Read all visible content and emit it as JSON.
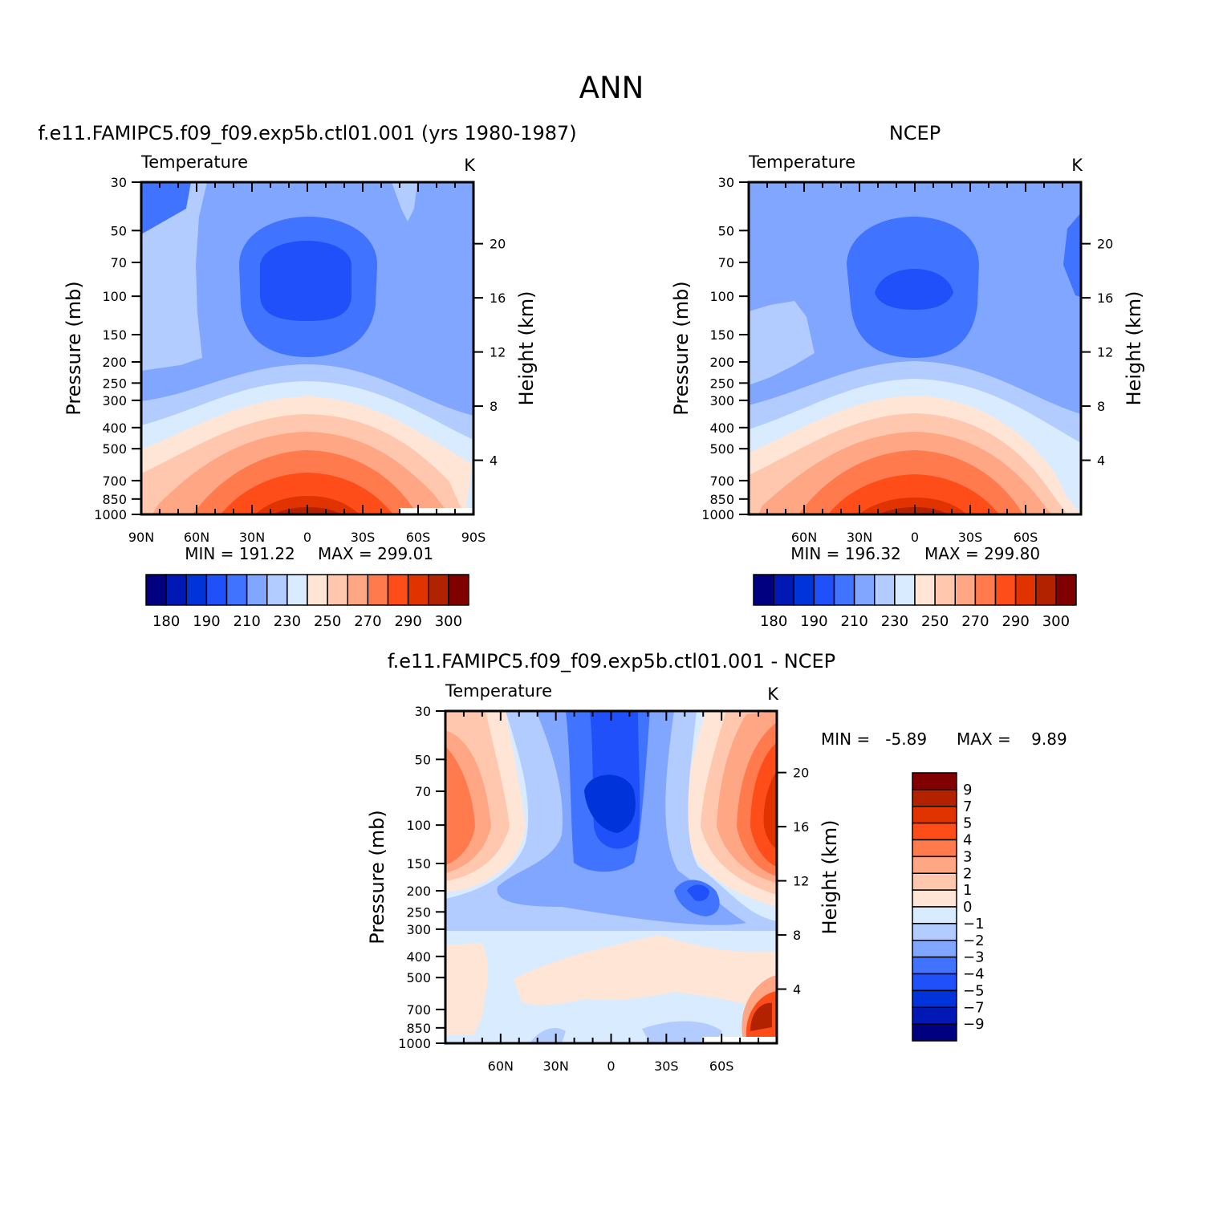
{
  "page_title": "ANN",
  "colors": {
    "temp_scale": [
      "#000080",
      "#0019B5",
      "#0033D9",
      "#1F50FA",
      "#4073FF",
      "#80A6FF",
      "#B3CCFF",
      "#D9EBFF",
      "#FFE5D6",
      "#FFC7AD",
      "#FFA685",
      "#FF7A4D",
      "#FF4D1A",
      "#E03300",
      "#B32200",
      "#800000"
    ],
    "diff_scale": [
      "#000080",
      "#0019B5",
      "#0033D9",
      "#1F50FA",
      "#4073FF",
      "#80A6FF",
      "#B3CCFF",
      "#D9EBFF",
      "#FFE5D6",
      "#FFC7AD",
      "#FFA685",
      "#FF7A4D",
      "#FF4D1A",
      "#E03300",
      "#B32200",
      "#800000"
    ]
  },
  "chart_data": [
    {
      "id": "model",
      "type": "contour",
      "title": "f.e11.FAMIPC5.f09_f09.exp5b.ctl01.001 (yrs 1980-1987)",
      "left_string": "Temperature",
      "right_string": "K",
      "xlabel": "",
      "ylabel": "Pressure (mb)",
      "y2label": "Height (km)",
      "xlim": [
        90,
        -90
      ],
      "ylim": [
        1000,
        30
      ],
      "x_ticks": [
        90,
        60,
        30,
        0,
        -30,
        -60,
        -90
      ],
      "x_tick_labels": [
        "90N",
        "60N",
        "30N",
        "0",
        "30S",
        "60S",
        "90S"
      ],
      "y_ticks": [
        30,
        50,
        70,
        100,
        150,
        200,
        250,
        300,
        400,
        500,
        700,
        850,
        1000
      ],
      "y_tick_labels": [
        "30",
        "50",
        "70",
        "100",
        "150",
        "200",
        "250",
        "300",
        "400",
        "500",
        "700",
        "850",
        "1000"
      ],
      "height_ticks_km": [
        4,
        8,
        12,
        16,
        20
      ],
      "height_tick_labels": [
        "4",
        "8",
        "12",
        "16",
        "20"
      ],
      "min_label": "MIN = 191.22",
      "max_label": "MAX = 299.01",
      "min": 191.22,
      "max": 299.01,
      "levels": [
        180,
        185,
        190,
        200,
        210,
        220,
        230,
        240,
        250,
        260,
        270,
        280,
        290,
        295,
        300
      ],
      "colorbar_labels": [
        "180",
        "190",
        "210",
        "230",
        "250",
        "270",
        "290",
        "300"
      ]
    },
    {
      "id": "obs",
      "type": "contour",
      "title": "NCEP",
      "left_string": "Temperature",
      "right_string": "K",
      "ylabel": "Pressure (mb)",
      "y2label": "Height (km)",
      "xlim": [
        90,
        -90
      ],
      "ylim": [
        1000,
        30
      ],
      "x_ticks": [
        60,
        30,
        0,
        -30,
        -60
      ],
      "x_tick_labels": [
        "60N",
        "30N",
        "0",
        "30S",
        "60S"
      ],
      "y_ticks": [
        30,
        50,
        70,
        100,
        150,
        200,
        250,
        300,
        400,
        500,
        700,
        850,
        1000
      ],
      "y_tick_labels": [
        "30",
        "50",
        "70",
        "100",
        "150",
        "200",
        "250",
        "300",
        "400",
        "500",
        "700",
        "850",
        "1000"
      ],
      "height_ticks_km": [
        4,
        8,
        12,
        16,
        20
      ],
      "height_tick_labels": [
        "4",
        "8",
        "12",
        "16",
        "20"
      ],
      "min_label": "MIN = 196.32",
      "max_label": "MAX = 299.80",
      "min": 196.32,
      "max": 299.8,
      "levels": [
        180,
        185,
        190,
        200,
        210,
        220,
        230,
        240,
        250,
        260,
        270,
        280,
        290,
        295,
        300
      ],
      "colorbar_labels": [
        "180",
        "190",
        "210",
        "230",
        "250",
        "270",
        "290",
        "300"
      ]
    },
    {
      "id": "diff",
      "type": "contour",
      "title": "f.e11.FAMIPC5.f09_f09.exp5b.ctl01.001 - NCEP",
      "left_string": "Temperature",
      "right_string": "K",
      "ylabel": "Pressure (mb)",
      "y2label": "Height (km)",
      "xlim": [
        90,
        -90
      ],
      "ylim": [
        1000,
        30
      ],
      "x_ticks": [
        60,
        30,
        0,
        -30,
        -60
      ],
      "x_tick_labels": [
        "60N",
        "30N",
        "0",
        "30S",
        "60S"
      ],
      "y_ticks": [
        30,
        50,
        70,
        100,
        150,
        200,
        250,
        300,
        400,
        500,
        700,
        850,
        1000
      ],
      "y_tick_labels": [
        "30",
        "50",
        "70",
        "100",
        "150",
        "200",
        "250",
        "300",
        "400",
        "500",
        "700",
        "850",
        "1000"
      ],
      "height_ticks_km": [
        4,
        8,
        12,
        16,
        20
      ],
      "height_tick_labels": [
        "4",
        "8",
        "12",
        "16",
        "20"
      ],
      "min_label": "MIN =   -5.89",
      "max_label": "MAX =    9.89",
      "min": -5.89,
      "max": 9.89,
      "levels": [
        -9,
        -7,
        -5,
        -4,
        -3,
        -2,
        -1,
        0,
        1,
        2,
        3,
        4,
        5,
        7,
        9
      ],
      "colorbar_labels": [
        "9",
        "7",
        "5",
        "4",
        "3",
        "2",
        "1",
        "0",
        "-1",
        "-2",
        "-3",
        "-4",
        "-5",
        "-7",
        "-9"
      ]
    }
  ]
}
